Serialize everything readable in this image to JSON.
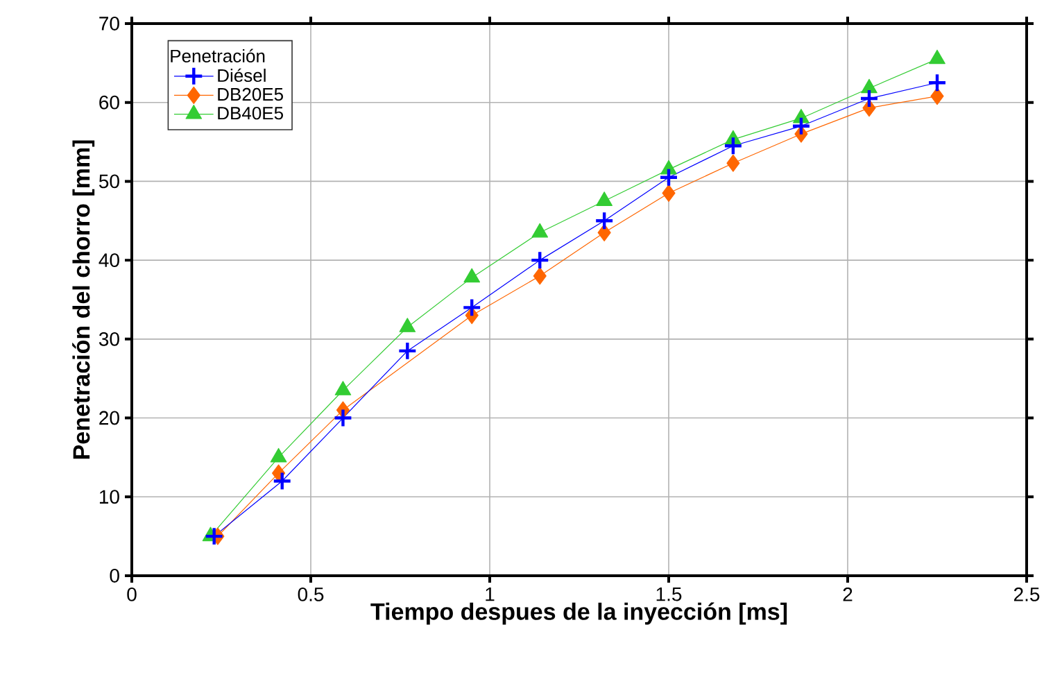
{
  "chart_data": {
    "type": "line",
    "xlabel": "Tiempo despues de la inyección [ms]",
    "ylabel": "Penetración del chorro  [mm]",
    "legend_title": "Penetración",
    "legend": "top left",
    "grid": true,
    "xlim": [
      0,
      2.5
    ],
    "ylim": [
      0,
      70
    ],
    "xticks": [
      0,
      0.5,
      1,
      1.5,
      2,
      2.5
    ],
    "yticks": [
      0,
      10,
      20,
      30,
      40,
      50,
      60,
      70
    ],
    "series": [
      {
        "name": "Diésel",
        "color": "#0000ff",
        "marker": "cross",
        "x": [
          0.23,
          0.42,
          0.59,
          0.77,
          0.95,
          1.14,
          1.32,
          1.5,
          1.68,
          1.87,
          2.06,
          2.25
        ],
        "values": [
          5,
          12,
          20,
          28.5,
          34,
          40,
          45,
          50.5,
          54.5,
          57,
          60.5,
          62.5
        ]
      },
      {
        "name": "DB20E5",
        "color": "#ff6600",
        "marker": "diamond",
        "x": [
          0.24,
          0.41,
          0.59,
          0.95,
          1.14,
          1.32,
          1.5,
          1.68,
          1.87,
          2.06,
          2.25
        ],
        "values": [
          5,
          13,
          21,
          33,
          38,
          43.5,
          48.5,
          52.3,
          56,
          59.3,
          60.8
        ]
      },
      {
        "name": "DB40E5",
        "color": "#33cc33",
        "marker": "triangle",
        "x": [
          0.22,
          0.41,
          0.59,
          0.77,
          0.95,
          1.14,
          1.32,
          1.5,
          1.68,
          1.87,
          2.06,
          2.25
        ],
        "values": [
          5,
          15,
          23.5,
          31.5,
          37.8,
          43.5,
          47.5,
          51.5,
          55.3,
          58,
          61.8,
          65.5
        ]
      }
    ]
  }
}
